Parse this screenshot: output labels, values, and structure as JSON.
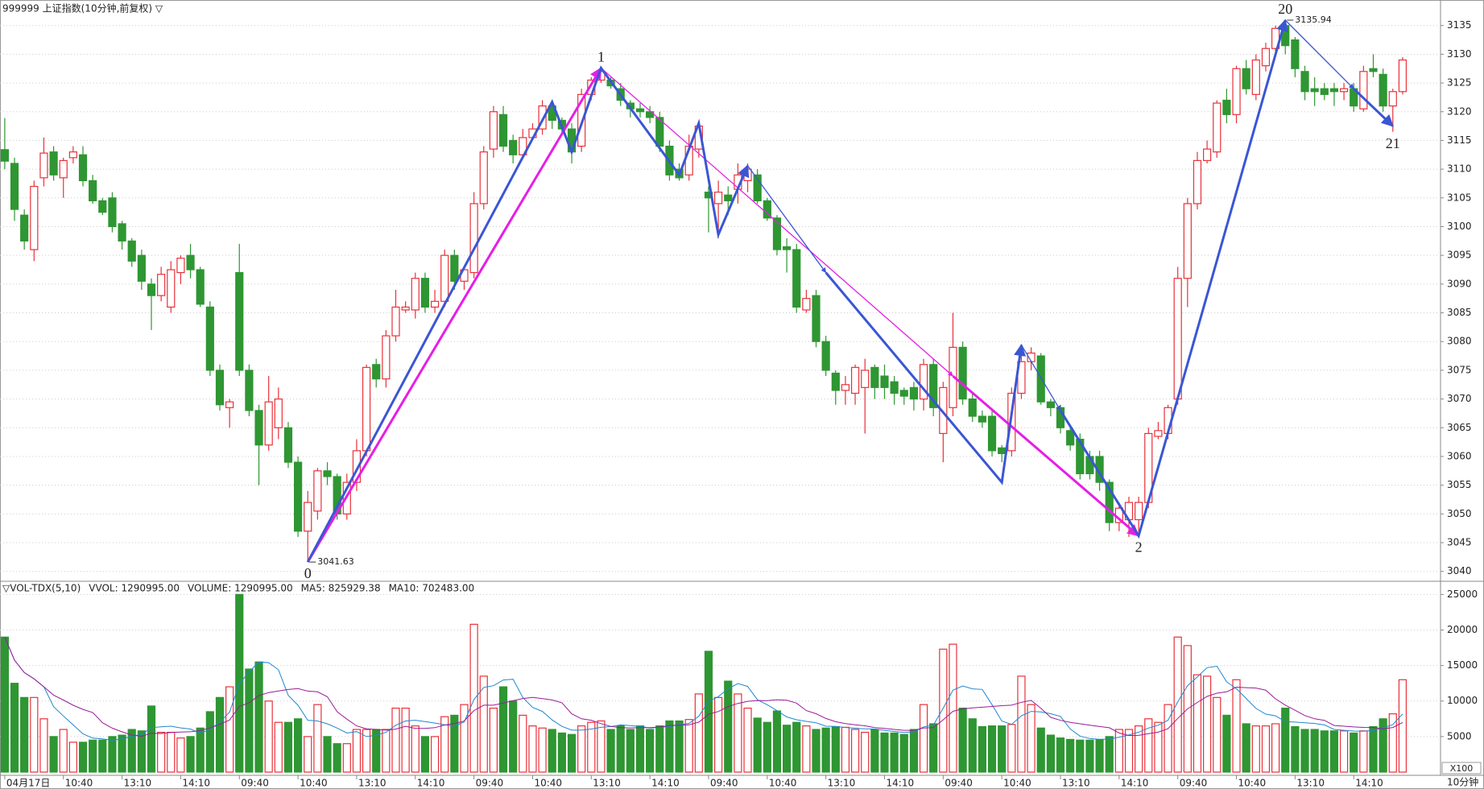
{
  "chart_data": {
    "type": "candlestick",
    "title": "999999 上证指数(10分钟,前复权) ▽",
    "categories": [
      "04月17日",
      null,
      null,
      null,
      null,
      null,
      "10:40",
      null,
      null,
      null,
      null,
      null,
      "13:10",
      null,
      null,
      null,
      null,
      null,
      "14:10",
      null,
      null,
      null,
      null,
      null,
      "09:40",
      null,
      null,
      null,
      null,
      null,
      "10:40",
      null,
      null,
      null,
      null,
      null,
      "13:10",
      null,
      null,
      null,
      null,
      null,
      "14:10",
      null,
      null,
      null,
      null,
      null,
      "09:40",
      null,
      null,
      null,
      null,
      null,
      "10:40",
      null,
      null,
      null,
      null,
      null,
      "13:10",
      null,
      null,
      null,
      null,
      null,
      "14:10",
      null,
      null,
      null,
      null,
      null,
      "09:40",
      null,
      null,
      null,
      null,
      null,
      "10:40",
      null,
      null,
      null,
      null,
      null,
      "13:10",
      null,
      null,
      null,
      null,
      null,
      "14:10",
      null,
      null,
      null,
      null,
      null,
      "09:40",
      null,
      null,
      null,
      null,
      null,
      "10:40",
      null,
      null,
      null,
      null,
      null,
      "13:10",
      null,
      null,
      null,
      null,
      null,
      "14:10",
      null,
      null,
      null,
      null,
      null,
      "09:40",
      null,
      null,
      null,
      null,
      null,
      "10:40",
      null,
      null,
      null,
      null,
      null,
      "13:10",
      null,
      null,
      null,
      null,
      null,
      "14:10",
      null,
      null,
      null,
      null,
      null
    ],
    "open": [
      3113.4,
      3111,
      3102,
      3096,
      3108.5,
      3113,
      3108.5,
      3112,
      3112.5,
      3108,
      3104.5,
      3105,
      3100.5,
      3097.5,
      3095,
      3090,
      3088,
      3086,
      3092,
      3095,
      3092.5,
      3086,
      3075,
      3068.5,
      3092,
      3075,
      3068,
      3062,
      3065,
      3065,
      3059,
      3047,
      3050.5,
      3057.5,
      3056.5,
      3050,
      3055.5,
      3061,
      3076,
      3073.5,
      3081,
      3085.5,
      3085.5,
      3091,
      3086,
      3087,
      3095,
      3090.5,
      3092,
      3104,
      3113.5,
      3119.5,
      3115,
      3112.5,
      3115.5,
      3117,
      3121,
      3118.5,
      3117,
      3114,
      3123,
      3125.5,
      3125.5,
      3124,
      3121.5,
      3120.5,
      3120,
      3119,
      3114,
      3110,
      3109,
      3113.5,
      3106,
      3104,
      3105.5,
      3106.5,
      3108,
      3109,
      3104.5,
      3101.5,
      3096.5,
      3096,
      3085.5,
      3088,
      3080,
      3074.5,
      3071.5,
      3071,
      3072,
      3075.5,
      3074,
      3073,
      3071.5,
      3072,
      3070,
      3076,
      3064,
      3068.5,
      3079,
      3070,
      3067,
      3067,
      3061.5,
      3061,
      3071,
      3076.5,
      3077.5,
      3069.5,
      3068.5,
      3064.5,
      3063,
      3060,
      3060,
      3055.5,
      3048.5,
      3049,
      3049,
      3052,
      3063.5,
      3064,
      3070,
      3091,
      3104,
      3111.5,
      3113,
      3122,
      3119.5,
      3127.5,
      3123,
      3128,
      3131,
      3135,
      3132.5,
      3127,
      3124,
      3124,
      3124,
      3123.5,
      3124,
      3120.5,
      3127.5,
      3126.5,
      3121,
      3123.5
    ],
    "high": [
      3118.9,
      3112,
      3103,
      3108,
      3115.5,
      3114,
      3112,
      3114,
      3114,
      3109,
      3105,
      3106,
      3101,
      3098,
      3096,
      3091,
      3093,
      3094,
      3095,
      3097,
      3093,
      3087,
      3076,
      3070,
      3097,
      3076,
      3069,
      3074,
      3072,
      3066,
      3060,
      3054,
      3058,
      3059,
      3057,
      3057,
      3063,
      3076,
      3077,
      3082,
      3089,
      3087,
      3092,
      3092,
      3089,
      3096,
      3096,
      3093,
      3106,
      3114,
      3121,
      3121,
      3116,
      3117,
      3118,
      3122,
      3122,
      3119,
      3118,
      3124,
      3126,
      3127.6,
      3126,
      3125,
      3122,
      3121.5,
      3121,
      3120,
      3115,
      3111,
      3116,
      3118,
      3107,
      3108,
      3107,
      3111,
      3111,
      3110,
      3105,
      3102,
      3098,
      3097,
      3089,
      3089,
      3081,
      3075,
      3074,
      3076,
      3077,
      3076,
      3076,
      3074,
      3072,
      3073,
      3077,
      3077,
      3073,
      3085,
      3080,
      3071,
      3068,
      3068,
      3062,
      3072,
      3079,
      3079,
      3078,
      3070,
      3069,
      3065,
      3064,
      3061,
      3061,
      3056,
      3052,
      3053,
      3053,
      3065,
      3066,
      3069,
      3093,
      3105,
      3113,
      3115,
      3122,
      3124,
      3128,
      3129,
      3130,
      3132,
      3135,
      3135.94,
      3133,
      3128,
      3126,
      3125,
      3125,
      3125,
      3125,
      3128,
      3130,
      3127.5,
      3124,
      3129.5
    ],
    "low": [
      3110,
      3101,
      3096,
      3094,
      3107,
      3108,
      3105,
      3111,
      3107,
      3104,
      3102,
      3099,
      3096,
      3093,
      3089,
      3082,
      3087,
      3085,
      3090,
      3091,
      3086,
      3074,
      3068,
      3065,
      3074,
      3067,
      3055,
      3061,
      3063,
      3058,
      3046,
      3041.63,
      3049,
      3055,
      3049,
      3049,
      3054,
      3060,
      3072,
      3072,
      3080,
      3085,
      3084,
      3085,
      3085,
      3086,
      3089,
      3089,
      3091,
      3103,
      3112,
      3113,
      3111,
      3112,
      3115,
      3116,
      3117,
      3116,
      3111,
      3113,
      3122,
      3125,
      3124,
      3121,
      3119,
      3119,
      3118,
      3113,
      3108,
      3108,
      3108,
      3112,
      3099,
      3098,
      3102,
      3104,
      3106,
      3104,
      3101,
      3095,
      3092,
      3085,
      3085,
      3079,
      3074,
      3069,
      3069,
      3069,
      3064,
      3070,
      3070,
      3069,
      3069,
      3068,
      3068,
      3067,
      3059,
      3067,
      3069,
      3066,
      3065,
      3060,
      3059,
      3060,
      3070,
      3075,
      3069,
      3067,
      3064,
      3061,
      3056,
      3056,
      3054,
      3047,
      3047,
      3046,
      3046.2,
      3051,
      3063,
      3063,
      3069,
      3086,
      3103,
      3111,
      3112,
      3118,
      3118,
      3123,
      3122,
      3127,
      3130,
      3130,
      3126,
      3122,
      3121,
      3122,
      3121,
      3122,
      3120,
      3120,
      3126,
      3120,
      3116.5,
      3123
    ],
    "close": [
      3111.4,
      3103,
      3097.5,
      3107,
      3112.8,
      3109,
      3111.5,
      3113,
      3108,
      3104.5,
      3102.5,
      3100,
      3097.5,
      3094,
      3090.5,
      3088,
      3091.7,
      3092.5,
      3094.5,
      3092.5,
      3086.5,
      3075,
      3069,
      3069.5,
      3075,
      3068,
      3062,
      3069.5,
      3070,
      3059,
      3047,
      3052,
      3057.5,
      3056.5,
      3050,
      3055.5,
      3061,
      3075.5,
      3073.5,
      3081,
      3086,
      3086,
      3091,
      3086,
      3087,
      3095,
      3090.5,
      3092.5,
      3104,
      3113,
      3120,
      3114,
      3112.5,
      3115.5,
      3117,
      3121,
      3118.5,
      3117,
      3113,
      3123,
      3125.5,
      3127,
      3124.5,
      3122,
      3120.5,
      3120,
      3119,
      3114,
      3109,
      3108.5,
      3114,
      3117.5,
      3105,
      3106,
      3104.5,
      3109,
      3110,
      3104.5,
      3101.5,
      3096,
      3096,
      3086,
      3087.5,
      3080,
      3075,
      3071.5,
      3072.5,
      3075.5,
      3075,
      3072,
      3072,
      3071,
      3070.5,
      3070,
      3076,
      3068.5,
      3072,
      3079,
      3070,
      3067,
      3066,
      3061,
      3060.5,
      3071,
      3076.5,
      3078,
      3069.5,
      3068.5,
      3065,
      3062,
      3057,
      3057,
      3055.5,
      3048.5,
      3051,
      3052,
      3052,
      3064,
      3064.5,
      3068.5,
      3091,
      3104,
      3111.5,
      3113.5,
      3121.5,
      3119.5,
      3127.5,
      3124,
      3129,
      3131,
      3134.5,
      3131.5,
      3127.5,
      3123.5,
      3123.5,
      3123,
      3123.5,
      3124,
      3121,
      3127,
      3127,
      3121,
      3123.5,
      3129
    ],
    "up_color": "#e8313a",
    "down_color": "#2e9632",
    "ylim": [
      3038.7,
      3138.6
    ],
    "yticks": [
      3040,
      3045,
      3050,
      3055,
      3060,
      3065,
      3070,
      3075,
      3080,
      3085,
      3090,
      3095,
      3100,
      3105,
      3110,
      3115,
      3120,
      3125,
      3130,
      3135
    ],
    "grid": true,
    "extremes": [
      {
        "index": 31,
        "value": 3041.63
      },
      {
        "index": 131,
        "value": 3135.94
      }
    ],
    "pivots": [
      {
        "label": "0",
        "index": 31,
        "side": "below"
      },
      {
        "label": "1",
        "index": 61,
        "side": "above"
      },
      {
        "label": "2",
        "index": 116,
        "side": "below"
      },
      {
        "label": "20",
        "index": 131,
        "side": "above"
      },
      {
        "label": "21",
        "index": 142,
        "side": "below"
      }
    ],
    "wave_lines": [
      {
        "color": "#e61ee6",
        "style": "thick",
        "points": [
          [
            31,
            3041.63
          ],
          [
            61,
            3127.6
          ]
        ]
      },
      {
        "color": "#e61ee6",
        "style": "thin",
        "points": [
          [
            61,
            3127.6
          ],
          [
            97,
            3074
          ]
        ]
      },
      {
        "color": "#e61ee6",
        "style": "thick",
        "points": [
          [
            97,
            3074
          ],
          [
            116,
            3046.2
          ]
        ]
      },
      {
        "color": "#3a56d4",
        "style": "thick",
        "points": [
          [
            31,
            3041.63
          ],
          [
            56,
            3121.7
          ],
          [
            58,
            3113
          ],
          [
            61,
            3127.6
          ],
          [
            69,
            3109
          ],
          [
            71,
            3118
          ],
          [
            73,
            3098.6
          ],
          [
            76,
            3110.6
          ]
        ]
      },
      {
        "color": "#3a56d4",
        "style": "thin",
        "points": [
          [
            76,
            3110.6
          ],
          [
            84,
            3092
          ]
        ]
      },
      {
        "color": "#3a56d4",
        "style": "thick",
        "points": [
          [
            84,
            3092
          ],
          [
            102,
            3055.5
          ],
          [
            104,
            3079.4
          ]
        ]
      },
      {
        "color": "#3a56d4",
        "style": "thin",
        "points": [
          [
            104,
            3079.4
          ],
          [
            108,
            3068
          ]
        ]
      },
      {
        "color": "#3a56d4",
        "style": "thick",
        "points": [
          [
            108,
            3068
          ],
          [
            116,
            3046.2
          ],
          [
            131,
            3135.94
          ]
        ]
      },
      {
        "color": "#3a56d4",
        "style": "thin",
        "points": [
          [
            131,
            3135.94
          ],
          [
            138,
            3124
          ]
        ]
      },
      {
        "color": "#3a56d4",
        "style": "thick",
        "points": [
          [
            138,
            3124
          ],
          [
            142,
            3117.5
          ]
        ]
      }
    ],
    "volume": {
      "legend": [
        {
          "text": "▽VOL-TDX(5,10)",
          "color": "#000000"
        },
        {
          "text": "VVOL: 1290995.00",
          "color": "#000000"
        },
        {
          "text": "VOLUME: 1290995.00",
          "color": "#1e88d2"
        },
        {
          "text": "MA5: 825929.38",
          "color": "#1e88d2"
        },
        {
          "text": "MA10: 702483.00",
          "color": "#9a1c96"
        }
      ],
      "values": [
        19000,
        12500,
        10500,
        10500,
        7500,
        5000,
        6000,
        4200,
        4200,
        4500,
        4500,
        5000,
        5200,
        6000,
        5800,
        9300,
        5600,
        5600,
        4800,
        5000,
        6200,
        8500,
        10500,
        12000,
        25000,
        14500,
        15500,
        10000,
        7000,
        7000,
        7500,
        5000,
        9500,
        5000,
        4000,
        4000,
        6000,
        6000,
        6000,
        6000,
        9000,
        9000,
        6500,
        5000,
        5000,
        7800,
        8000,
        9500,
        20800,
        13500,
        9000,
        12000,
        10000,
        8000,
        6500,
        6200,
        6000,
        5500,
        5300,
        6500,
        7000,
        7200,
        6000,
        6500,
        6000,
        6500,
        6000,
        6500,
        7200,
        7200,
        7400,
        11000,
        17000,
        10500,
        12800,
        11000,
        9000,
        7600,
        7000,
        8600,
        6600,
        7000,
        6500,
        6000,
        6200,
        6400,
        6300,
        6000,
        5600,
        6000,
        5500,
        5500,
        5300,
        6000,
        9500,
        6800,
        17300,
        18000,
        9000,
        7500,
        6400,
        6500,
        6500,
        6700,
        13500,
        9500,
        6200,
        5200,
        4800,
        4600,
        4500,
        4500,
        4600,
        5000,
        6000,
        6000,
        6500,
        7500,
        7000,
        9500,
        19000,
        17800,
        13700,
        13500,
        10500,
        8000,
        13000,
        6800,
        6500,
        6500,
        6800,
        9000,
        6400,
        6000,
        6000,
        5800,
        5800,
        5800,
        5500,
        5800,
        6400,
        7500,
        8200,
        13000
      ],
      "ma": [
        {
          "period": 5,
          "color": "#1e88d2"
        },
        {
          "period": 10,
          "color": "#9a1c96"
        }
      ],
      "ylim": [
        0,
        26400
      ],
      "yticks": [
        5000,
        10000,
        15000,
        20000,
        25000
      ],
      "unit_label": "X100"
    },
    "period_label": "10分钟"
  }
}
